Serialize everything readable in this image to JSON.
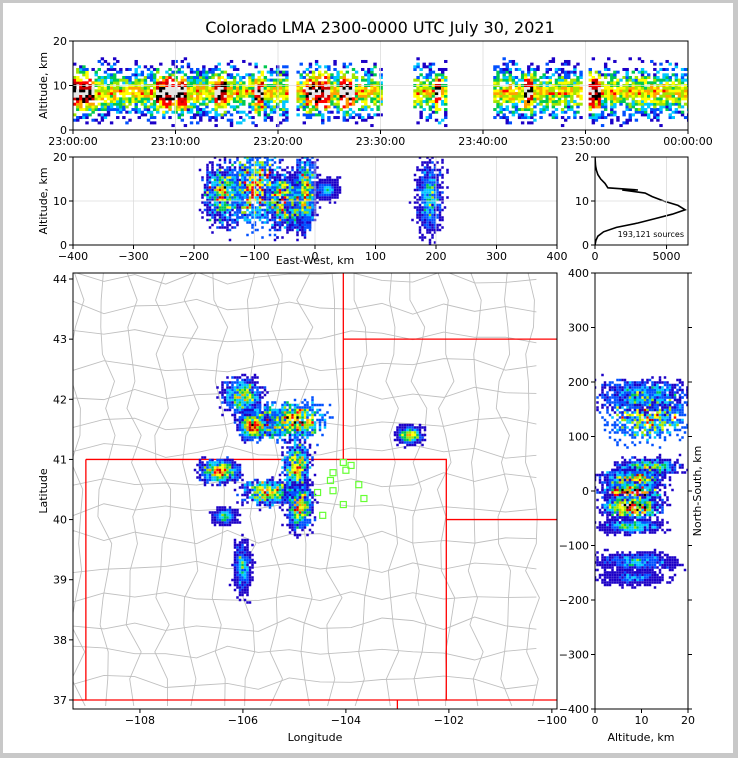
{
  "chart_data": [
    {
      "panel": "time-altitude",
      "type": "heatmap",
      "title": "Colorado LMA 2300-0000 UTC July 30, 2021",
      "xlabel": "",
      "ylabel": "Altitude, km",
      "x_ticks": [
        "23:00:00",
        "23:10:00",
        "23:20:00",
        "23:30:00",
        "23:40:00",
        "23:50:00",
        "00:00:00"
      ],
      "x_range_min": [
        0,
        60
      ],
      "y_ticks": [
        0,
        10,
        20
      ],
      "ylim": [
        0,
        20
      ],
      "activity_segments_min": [
        [
          0,
          21
        ],
        [
          21.8,
          30.2
        ],
        [
          33.2,
          36.3
        ],
        [
          41,
          49.5
        ],
        [
          50.3,
          60
        ]
      ],
      "intense_segments_min": [
        [
          0,
          2
        ],
        [
          8,
          11
        ],
        [
          13.8,
          14.8
        ],
        [
          17.5,
          18.5
        ],
        [
          22.5,
          25
        ],
        [
          26,
          27.5
        ],
        [
          35,
          35.8
        ],
        [
          43.8,
          44.8
        ],
        [
          50.3,
          51.2
        ]
      ]
    },
    {
      "panel": "east-west-altitude",
      "type": "heatmap",
      "xlabel": "East-West, km",
      "ylabel": "Altitude, km",
      "x_ticks": [
        -400,
        -300,
        -200,
        -100,
        0,
        100,
        200,
        300,
        400
      ],
      "xlim": [
        -400,
        400
      ],
      "y_ticks": [
        0,
        10,
        20
      ],
      "ylim": [
        0,
        20
      ],
      "clusters": [
        {
          "x": -150,
          "z": 11.5,
          "sx": 16,
          "sz": 3.5,
          "level": 0.9
        },
        {
          "x": -95,
          "z": 13,
          "sx": 18,
          "sz": 4,
          "level": 1.0
        },
        {
          "x": -50,
          "z": 10,
          "sx": 14,
          "sz": 3,
          "level": 0.95
        },
        {
          "x": -25,
          "z": 9,
          "sx": 10,
          "sz": 2.5,
          "level": 1.0
        },
        {
          "x": -15,
          "z": 12,
          "sx": 8,
          "sz": 4,
          "level": 0.7
        },
        {
          "x": 190,
          "z": 10.5,
          "sx": 10,
          "sz": 4,
          "level": 0.45
        },
        {
          "x": 20,
          "z": 12.5,
          "sx": 8,
          "sz": 1,
          "level": 0.3
        }
      ]
    },
    {
      "panel": "altitude-histogram",
      "type": "line",
      "annotation": "193,121 sources",
      "x_ticks": [
        0,
        5000
      ],
      "xlim": [
        0,
        6500
      ],
      "y_ticks": [
        0,
        10,
        20
      ],
      "ylim": [
        0,
        20
      ],
      "x": [
        0,
        60,
        200,
        600,
        1500,
        3000,
        4200,
        5400,
        6300,
        5800,
        4800,
        4000,
        3500,
        1900,
        3000,
        900,
        700,
        400,
        200,
        100,
        40,
        0
      ],
      "y": [
        0,
        1,
        2,
        3,
        4,
        5,
        6,
        7,
        8,
        9,
        10,
        11,
        11.8,
        12.5,
        12.5,
        13,
        14,
        15,
        16,
        17,
        18,
        20
      ]
    },
    {
      "panel": "plan-view",
      "type": "map",
      "xlabel": "Longitude",
      "ylabel": "Latitude",
      "x_ticks": [
        -108,
        -106,
        -104,
        -102,
        -100
      ],
      "xlim": [
        -109.3,
        -99.9
      ],
      "y_ticks": [
        37,
        38,
        39,
        40,
        41,
        42,
        43,
        44
      ],
      "ylim": [
        36.85,
        44.1
      ],
      "sensor_stations": [
        [
          -104.05,
          40.95
        ],
        [
          -103.9,
          40.9
        ],
        [
          -104.0,
          40.82
        ],
        [
          -104.25,
          40.78
        ],
        [
          -104.3,
          40.65
        ],
        [
          -104.55,
          40.45
        ],
        [
          -104.25,
          40.48
        ],
        [
          -103.75,
          40.58
        ],
        [
          -103.65,
          40.35
        ],
        [
          -104.05,
          40.25
        ],
        [
          -104.45,
          40.07
        ]
      ],
      "clusters": [
        {
          "lon": -106.0,
          "lat": 42.05,
          "slon": 0.18,
          "slat": 0.14,
          "level": 0.6
        },
        {
          "lon": -105.5,
          "lat": 41.62,
          "slon": 0.25,
          "slat": 0.12,
          "level": 1.0
        },
        {
          "lon": -104.95,
          "lat": 41.65,
          "slon": 0.25,
          "slat": 0.14,
          "level": 1.0
        },
        {
          "lon": -105.8,
          "lat": 41.55,
          "slon": 0.12,
          "slat": 0.1,
          "level": 0.85
        },
        {
          "lon": -106.45,
          "lat": 40.8,
          "slon": 0.18,
          "slat": 0.09,
          "level": 0.75
        },
        {
          "lon": -105.5,
          "lat": 40.45,
          "slon": 0.25,
          "slat": 0.1,
          "level": 0.9
        },
        {
          "lon": -104.95,
          "lat": 40.85,
          "slon": 0.12,
          "slat": 0.22,
          "level": 0.7
        },
        {
          "lon": -104.9,
          "lat": 40.2,
          "slon": 0.12,
          "slat": 0.18,
          "level": 0.75
        },
        {
          "lon": -102.75,
          "lat": 41.4,
          "slon": 0.12,
          "slat": 0.07,
          "level": 0.55
        },
        {
          "lon": -106.0,
          "lat": 39.2,
          "slon": 0.08,
          "slat": 0.2,
          "level": 0.4
        },
        {
          "lon": -106.35,
          "lat": 40.05,
          "slon": 0.1,
          "slat": 0.06,
          "level": 0.35
        }
      ]
    },
    {
      "panel": "altitude-north-south",
      "type": "heatmap",
      "xlabel": "Altitude, km",
      "ylabel": "North-South, km",
      "x_ticks": [
        0,
        10,
        20
      ],
      "xlim": [
        0,
        20
      ],
      "y_ticks": [
        -400,
        -300,
        -200,
        -100,
        0,
        100,
        200,
        300,
        400
      ],
      "ylim": [
        -400,
        400
      ],
      "clusters": [
        {
          "z": 11.5,
          "y": 138,
          "sz": 4,
          "sy": 22,
          "level": 1.0
        },
        {
          "z": 10.5,
          "y": 175,
          "sz": 5,
          "sy": 14,
          "level": 0.5
        },
        {
          "z": 11.5,
          "y": 42,
          "sz": 3,
          "sy": 8,
          "level": 0.6
        },
        {
          "z": 8,
          "y": 20,
          "sz": 3,
          "sy": 9,
          "level": 0.85
        },
        {
          "z": 8,
          "y": -5,
          "sz": 3,
          "sy": 10,
          "level": 0.9
        },
        {
          "z": 8,
          "y": -30,
          "sz": 3,
          "sy": 10,
          "level": 1.0
        },
        {
          "z": 8,
          "y": -65,
          "sz": 3,
          "sy": 6,
          "level": 0.4
        },
        {
          "z": 9,
          "y": -130,
          "sz": 4,
          "sy": 8,
          "level": 0.35
        },
        {
          "z": 8,
          "y": -160,
          "sz": 3,
          "sy": 6,
          "level": 0.2
        }
      ]
    }
  ],
  "colors": {
    "density_ramp": [
      "#1c00c8",
      "#0050ff",
      "#00c8ff",
      "#00c850",
      "#a0e600",
      "#ffff00",
      "#ffa000",
      "#ff0000",
      "#c80000",
      "#000000",
      "#e6e6e6"
    ],
    "state_borders": "#ff0000",
    "county_borders": "#c0c0c0",
    "stations": "#66ff33"
  }
}
